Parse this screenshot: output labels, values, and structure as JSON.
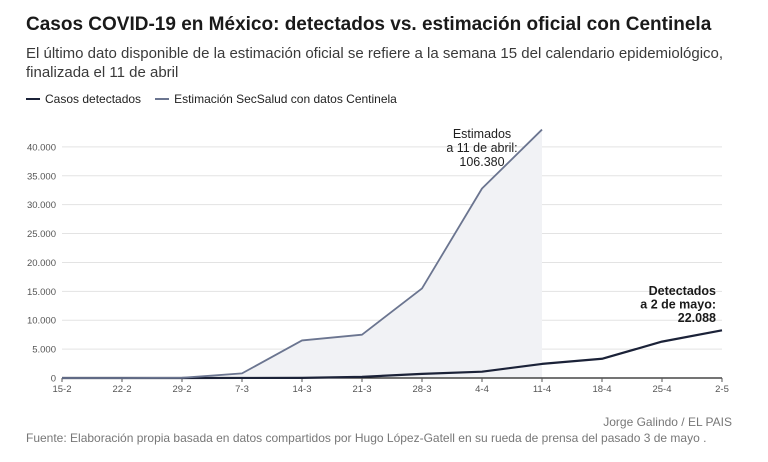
{
  "chart_data": {
    "type": "line",
    "title": "Casos COVID-19 en México: detectados vs. estimación oficial con Centinela",
    "subtitle": "El último dato disponible de la estimación oficial se refiere a la semana 15 del calendario epidemiológico, finalizada el 11 de abril",
    "categories": [
      "15-2",
      "22-2",
      "29-2",
      "7-3",
      "14-3",
      "21-3",
      "28-3",
      "4-4",
      "11-4",
      "18-4",
      "25-4",
      "2-5"
    ],
    "series": [
      {
        "name": "Casos detectados",
        "color": "#1b2238",
        "values": [
          0,
          0,
          4,
          7,
          26,
          203,
          717,
          1094,
          2439,
          3328,
          6297,
          8261
        ]
      },
      {
        "name": "Estimación SecSalud con datos Centinela",
        "color": "#6b7590",
        "values": [
          0,
          0,
          30,
          800,
          6500,
          7500,
          15500,
          32800,
          43000,
          null,
          null,
          null
        ]
      }
    ],
    "y_ticks": [
      "0",
      "5.000",
      "10.000",
      "15.000",
      "20.000",
      "25.000",
      "30.000",
      "35.000",
      "40.000"
    ],
    "ylim": [
      0,
      45000
    ],
    "grid": true,
    "legend": "top-left",
    "shaded_area_color": "#f1f2f5",
    "annotations": [
      {
        "lines": [
          "Estimados",
          "a 11 de abril:",
          "106.380"
        ],
        "style": "normal"
      },
      {
        "lines": [
          "Detectados",
          "a 2 de mayo:",
          "22.088"
        ],
        "style": "bold"
      }
    ]
  },
  "credit": "Jorge Galindo / EL PAIS",
  "source": "Fuente: Elaboración propia basada en datos compartidos por Hugo López-Gatell en su rueda de prensa del pasado 3 de mayo ."
}
